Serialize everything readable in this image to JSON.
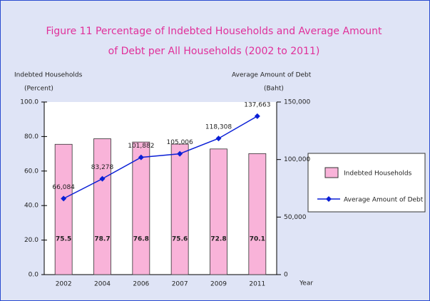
{
  "chart_data": {
    "type": "bar-line",
    "title": [
      "Figure   11   Percentage of Indebted Households and Average Amount",
      "of Debt per All Households  (2002 to 2011)"
    ],
    "y_label": "Indebted Households",
    "y_unit": "(Percent)",
    "y2_label": "Average Amount of Debt",
    "y2_unit": "(Baht)",
    "x_label": "Year",
    "categories": [
      "2002",
      "2004",
      "2006",
      "2007",
      "2009",
      "2011"
    ],
    "series": [
      {
        "name": "Indebted Households",
        "color": "#f9b3d9",
        "values": [
          75.5,
          78.7,
          76.8,
          75.6,
          72.8,
          70.1
        ]
      },
      {
        "name": "Average Amount of Debt",
        "color": "#0a1fd6",
        "axis": "y2",
        "values": [
          66084,
          83278,
          101882,
          105006,
          118308,
          137663
        ],
        "value_labels": [
          "66,084",
          "83,278",
          "101,882",
          "105,006",
          "118,308",
          "137,663"
        ]
      }
    ],
    "ylim": [
      0,
      100
    ],
    "yticks": [
      {
        "value": 0,
        "label": "0.0"
      },
      {
        "value": 20,
        "label": "20.0"
      },
      {
        "value": 40,
        "label": "40.0"
      },
      {
        "value": 60,
        "label": "60.0"
      },
      {
        "value": 80,
        "label": "80.0"
      },
      {
        "value": 100,
        "label": "100.0"
      }
    ],
    "y2lim": [
      0,
      150000
    ],
    "y2ticks": [
      0,
      {
        "value": 50000,
        "label": "50,000"
      },
      {
        "value": 100000,
        "label": "100,000"
      },
      {
        "value": 150000,
        "label": "150,000"
      }
    ]
  }
}
